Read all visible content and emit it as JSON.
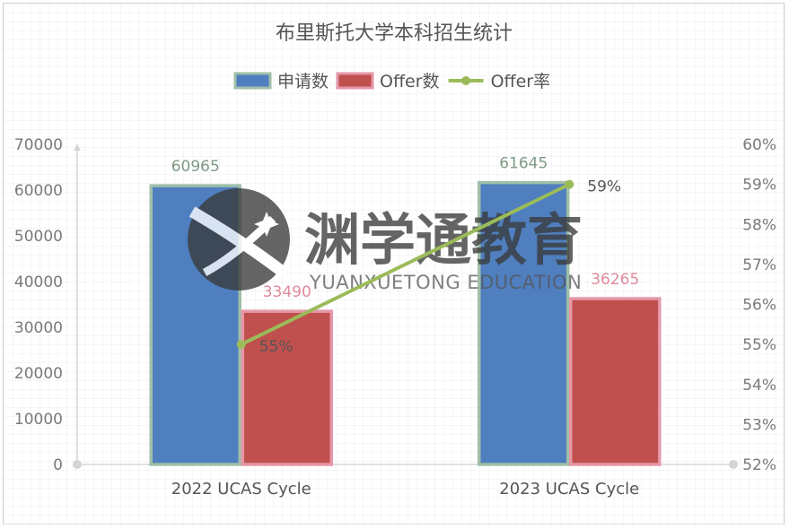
{
  "chart_data": {
    "type": "bar",
    "title": "布里斯托大学本科招生统计",
    "categories": [
      "2022 UCAS Cycle",
      "2023 UCAS Cycle"
    ],
    "series": [
      {
        "name": "申请数",
        "type": "bar",
        "axis": "left",
        "values": [
          60965,
          61645
        ],
        "labels": [
          "60965",
          "61645"
        ],
        "color": "#4f7fbf",
        "border": "#9fbfa8"
      },
      {
        "name": "Offer数",
        "type": "bar",
        "axis": "left",
        "values": [
          33490,
          36265
        ],
        "labels": [
          "33490",
          "36265"
        ],
        "color": "#c0504d",
        "border": "#e597a8"
      },
      {
        "name": "Offer率",
        "type": "line",
        "axis": "right",
        "values": [
          0.55,
          0.59
        ],
        "labels": [
          "55%",
          "59%"
        ],
        "color": "#9bbb59"
      }
    ],
    "y_left": {
      "min": 0,
      "max": 70000,
      "ticks": [
        "0",
        "10000",
        "20000",
        "30000",
        "40000",
        "50000",
        "60000",
        "70000"
      ]
    },
    "y_right": {
      "min": 0.52,
      "max": 0.6,
      "ticks": [
        "52%",
        "53%",
        "54%",
        "55%",
        "56%",
        "57%",
        "58%",
        "59%",
        "60%"
      ]
    },
    "grid": true,
    "legend": "top"
  },
  "watermark": {
    "cn": "渊学通教育",
    "en": "YUANXUETONG EDUCATION"
  }
}
